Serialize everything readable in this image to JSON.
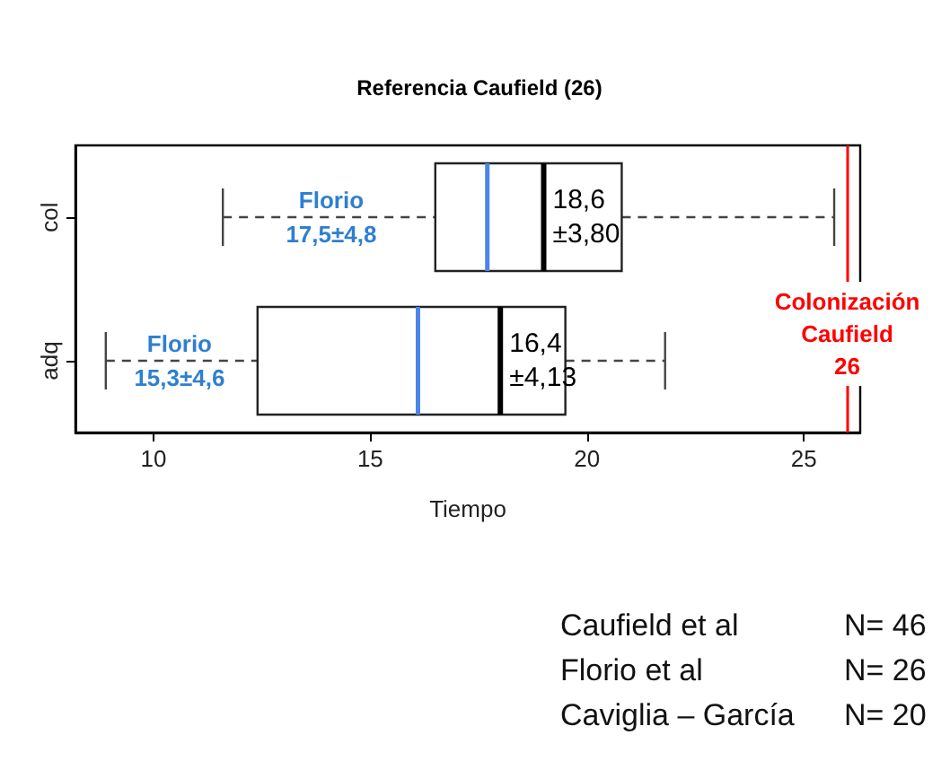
{
  "chart_data": {
    "type": "box",
    "orientation": "horizontal",
    "title": "Referencia Caufield (26)",
    "xlabel": "Tiempo",
    "categories": [
      "col",
      "adq"
    ],
    "boxes": [
      {
        "low": 11.6,
        "q1": 16.5,
        "median": 19.0,
        "q3": 20.8,
        "high": 25.7,
        "mean": 17.7
      },
      {
        "low": 8.9,
        "q1": 12.4,
        "median": 18.0,
        "q3": 19.5,
        "high": 21.8,
        "mean": 16.1
      }
    ],
    "xlim": [
      8.2,
      26.3
    ],
    "xticks": [
      10,
      15,
      20,
      25
    ],
    "grid": false,
    "ref_lines": [
      {
        "axis": "x",
        "value": 26,
        "label": "Colonización\nCaufield\n26",
        "color": "#ff0000"
      }
    ],
    "annotations": [
      {
        "text": "Florio\n17,5±4,8",
        "x": 14.1,
        "y": "col"
      },
      {
        "text": "Florio\n15,3±4,6",
        "x": 10.6,
        "y": "adq"
      },
      {
        "text": "18,6\n±3,80",
        "x": 19.0,
        "y": "col"
      },
      {
        "text": "16,4\n±4,13",
        "x": 18.0,
        "y": "adq"
      },
      "Caufield et al",
      "N= 46",
      "Florio et al",
      "N= 26",
      "Caviglia – García",
      "N= 20"
    ]
  }
}
